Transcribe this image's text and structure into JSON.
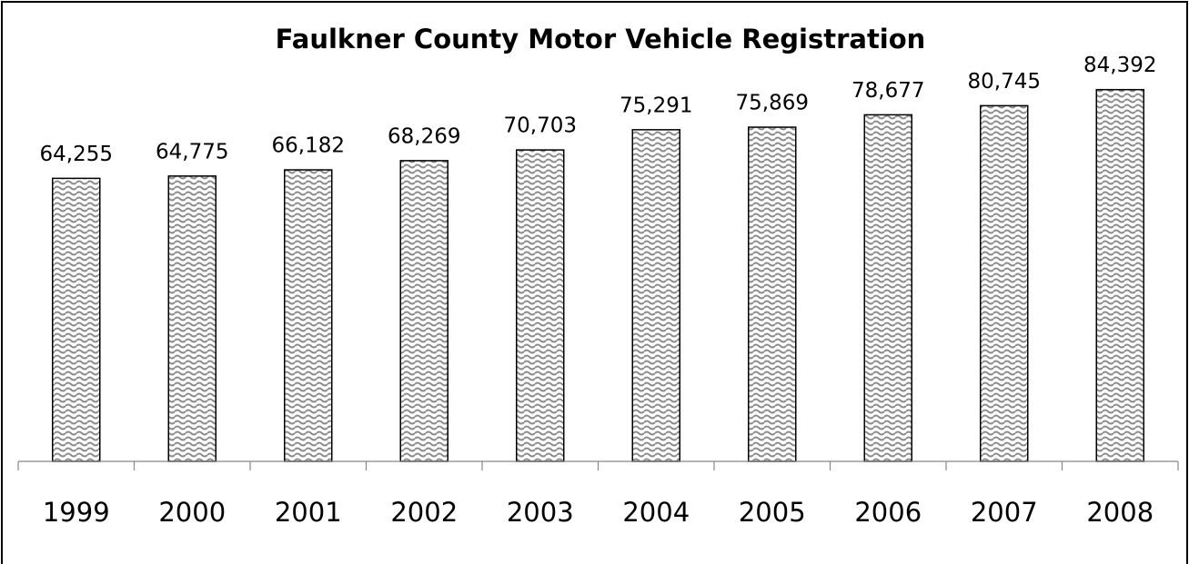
{
  "chart_data": {
    "type": "bar",
    "title": "Faulkner County Motor Vehicle Registration",
    "categories": [
      "1999",
      "2000",
      "2001",
      "2002",
      "2003",
      "2004",
      "2005",
      "2006",
      "2007",
      "2008"
    ],
    "values": [
      64255,
      64775,
      66182,
      68269,
      70703,
      75291,
      75869,
      78677,
      80745,
      84392
    ],
    "value_labels": [
      "64,255",
      "64,775",
      "66,182",
      "68,269",
      "70,703",
      "75,291",
      "75,869",
      "78,677",
      "80,745",
      "84,392"
    ],
    "color": "#8c8c8c",
    "ylim": [
      0,
      100000
    ]
  }
}
